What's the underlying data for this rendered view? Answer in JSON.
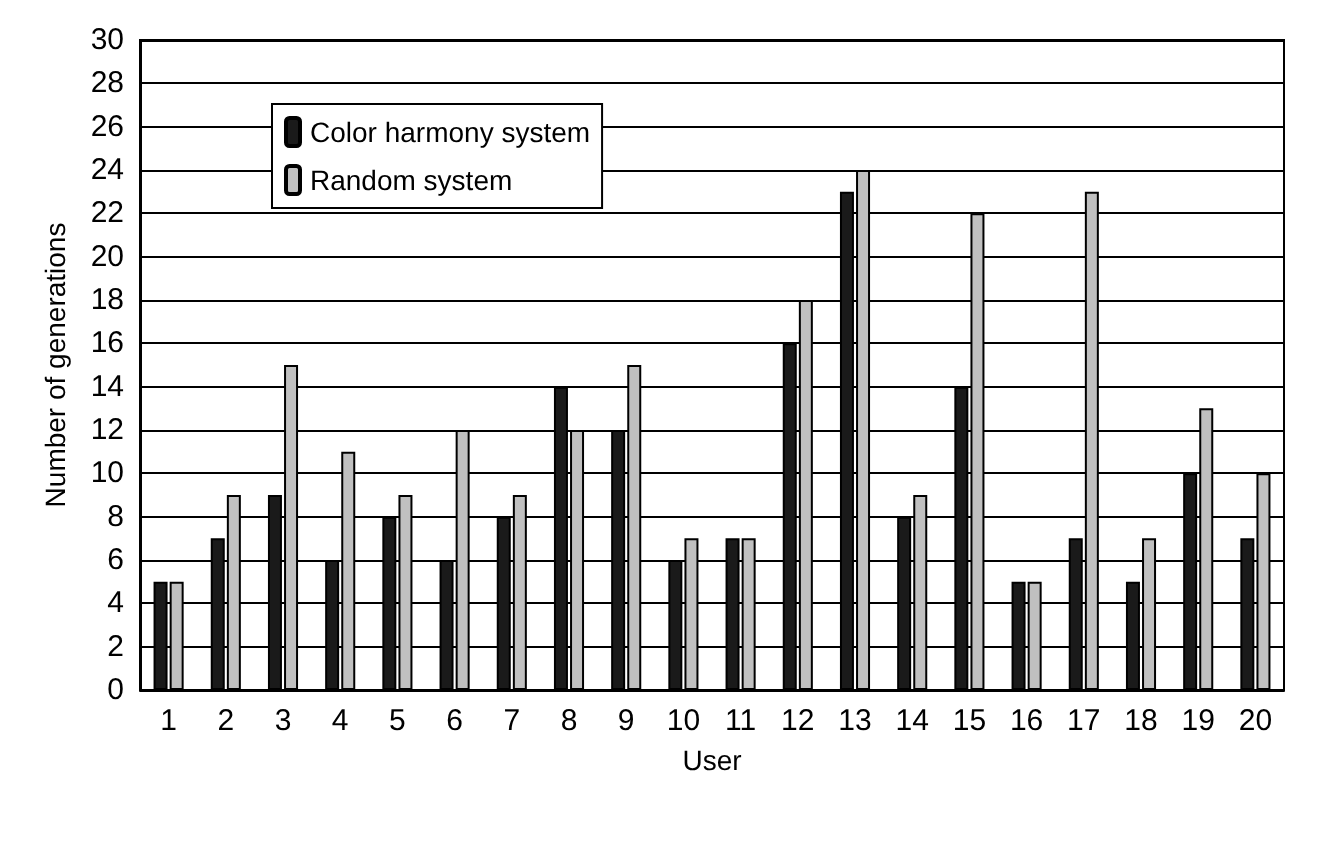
{
  "chart_data": {
    "type": "bar",
    "xlabel": "User",
    "ylabel": "Number of generations",
    "categories": [
      "1",
      "2",
      "3",
      "4",
      "5",
      "6",
      "7",
      "8",
      "9",
      "10",
      "11",
      "12",
      "13",
      "14",
      "15",
      "16",
      "17",
      "18",
      "19",
      "20"
    ],
    "series": [
      {
        "name": "Color harmony system",
        "color": "#1a1a1a",
        "values": [
          5,
          7,
          9,
          6,
          8,
          6,
          8,
          14,
          12,
          6,
          7,
          16,
          23,
          8,
          14,
          5,
          7,
          5,
          10,
          7
        ]
      },
      {
        "name": "Random system",
        "color": "#c0c0c0",
        "values": [
          5,
          9,
          15,
          11,
          9,
          12,
          9,
          12,
          15,
          7,
          7,
          18,
          24,
          9,
          22,
          5,
          23,
          7,
          13,
          10
        ]
      }
    ],
    "ylim": [
      0,
      30
    ],
    "yticks": [
      0,
      2,
      4,
      6,
      8,
      10,
      12,
      14,
      16,
      18,
      20,
      22,
      24,
      26,
      28,
      30
    ],
    "grid": "y",
    "legend": "top left"
  }
}
